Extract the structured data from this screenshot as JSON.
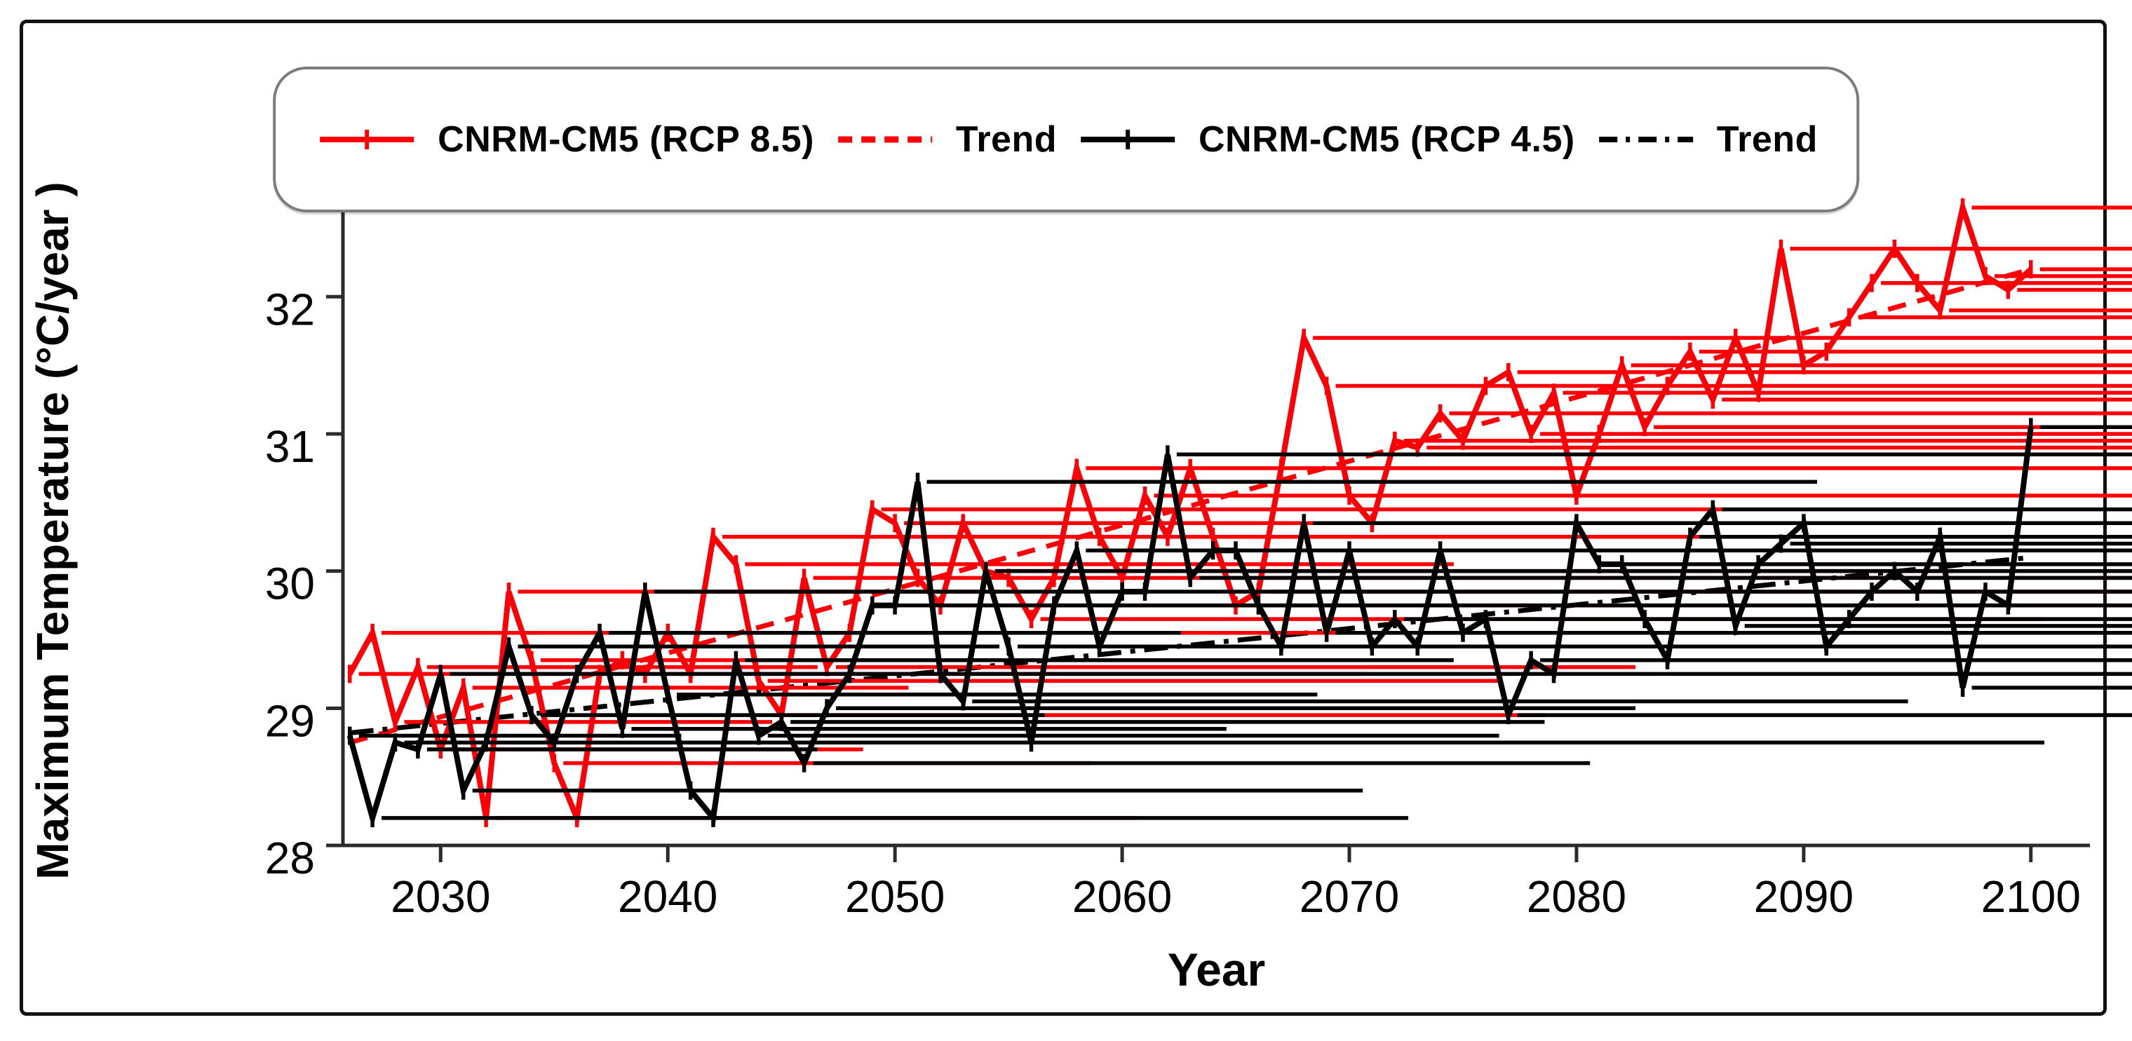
{
  "figure": {
    "type": "climate-projection-line-chart",
    "background": "#ffffff",
    "frame_color": "#111111"
  },
  "legend": {
    "entries": [
      {
        "label": "CNRM-CM5  (RCP 8.5)",
        "swatch": "solid-line-plus-marker",
        "color": "#fb0007"
      },
      {
        "label": "Trend",
        "swatch": "dashed-line",
        "color": "#fb0007"
      },
      {
        "label": "CNRM-CM5  (RCP 4.5)",
        "swatch": "solid-line-plus-marker",
        "color": "#000000"
      },
      {
        "label": "Trend",
        "swatch": "dash-dot-line",
        "color": "#000000"
      }
    ]
  },
  "chart_data": {
    "type": "line",
    "title": "",
    "xlabel": "Year",
    "ylabel": "Maximum Temperature (°C/year )",
    "xlim": [
      2025.7,
      2102.6
    ],
    "ylim": [
      28,
      32.63
    ],
    "x_ticks": [
      2030,
      2040,
      2050,
      2060,
      2070,
      2080,
      2090,
      2100
    ],
    "y_ticks": [
      28,
      29,
      30,
      31,
      32
    ],
    "grid": false,
    "legend_position": "top-center",
    "marker": "plus",
    "x": [
      2026,
      2027,
      2028,
      2029,
      2030,
      2031,
      2032,
      2033,
      2034,
      2035,
      2036,
      2037,
      2038,
      2039,
      2040,
      2041,
      2042,
      2043,
      2044,
      2045,
      2046,
      2047,
      2048,
      2049,
      2050,
      2051,
      2052,
      2053,
      2054,
      2055,
      2056,
      2057,
      2058,
      2059,
      2060,
      2061,
      2062,
      2063,
      2064,
      2065,
      2066,
      2067,
      2068,
      2069,
      2070,
      2071,
      2072,
      2073,
      2074,
      2075,
      2076,
      2077,
      2078,
      2079,
      2080,
      2081,
      2082,
      2083,
      2084,
      2085,
      2086,
      2087,
      2088,
      2089,
      2090,
      2091,
      2092,
      2093,
      2094,
      2095,
      2096,
      2097,
      2098,
      2099,
      2100
    ],
    "series": [
      {
        "name": "CNRM-CM5  (RCP 8.5)",
        "color": "#fb0007",
        "values": [
          29.25,
          29.55,
          28.9,
          29.3,
          28.7,
          29.15,
          28.2,
          29.85,
          29.35,
          28.6,
          28.2,
          29.25,
          29.35,
          29.25,
          29.55,
          29.25,
          30.25,
          30.05,
          29.2,
          28.95,
          29.95,
          29.3,
          29.55,
          30.45,
          30.35,
          29.95,
          29.75,
          30.35,
          30.0,
          29.95,
          29.65,
          29.95,
          30.75,
          30.25,
          29.95,
          30.55,
          30.25,
          30.75,
          30.25,
          29.75,
          29.85,
          30.75,
          31.7,
          31.35,
          30.55,
          30.35,
          30.95,
          30.9,
          31.15,
          30.95,
          31.35,
          31.45,
          31.0,
          31.3,
          30.55,
          31.0,
          31.5,
          31.05,
          31.35,
          31.6,
          31.25,
          31.7,
          31.3,
          32.35,
          31.5,
          31.6,
          31.85,
          32.1,
          32.35,
          32.1,
          31.9,
          32.65,
          32.15,
          32.05,
          32.2
        ]
      },
      {
        "name": "CNRM-CM5  (RCP 4.5)",
        "color": "#000000",
        "values": [
          28.8,
          28.2,
          28.75,
          28.7,
          29.25,
          28.4,
          28.75,
          29.45,
          28.95,
          28.75,
          29.25,
          29.55,
          28.85,
          29.85,
          29.1,
          28.4,
          28.2,
          29.35,
          28.8,
          28.9,
          28.6,
          29.0,
          29.25,
          29.75,
          29.75,
          30.65,
          29.25,
          29.05,
          30.0,
          29.45,
          28.75,
          29.75,
          30.15,
          29.45,
          29.85,
          29.85,
          30.85,
          29.95,
          30.15,
          30.15,
          29.75,
          29.45,
          30.35,
          29.55,
          30.15,
          29.45,
          29.65,
          29.45,
          30.15,
          29.55,
          29.65,
          28.95,
          29.35,
          29.25,
          30.35,
          30.05,
          30.05,
          29.65,
          29.35,
          30.25,
          30.45,
          29.6,
          30.05,
          30.2,
          30.35,
          29.45,
          29.65,
          29.85,
          30.0,
          29.85,
          30.25,
          29.15,
          29.85,
          29.75,
          31.05
        ]
      }
    ],
    "trends": [
      {
        "name": "Trend",
        "color": "#fb0007",
        "style": "dashed",
        "x0": 2026,
        "v0": 28.75,
        "x1": 2100,
        "v1": 32.2
      },
      {
        "name": "Trend",
        "color": "#000000",
        "style": "dashdot",
        "x0": 2026,
        "v0": 28.82,
        "x1": 2100,
        "v1": 30.1
      }
    ]
  }
}
